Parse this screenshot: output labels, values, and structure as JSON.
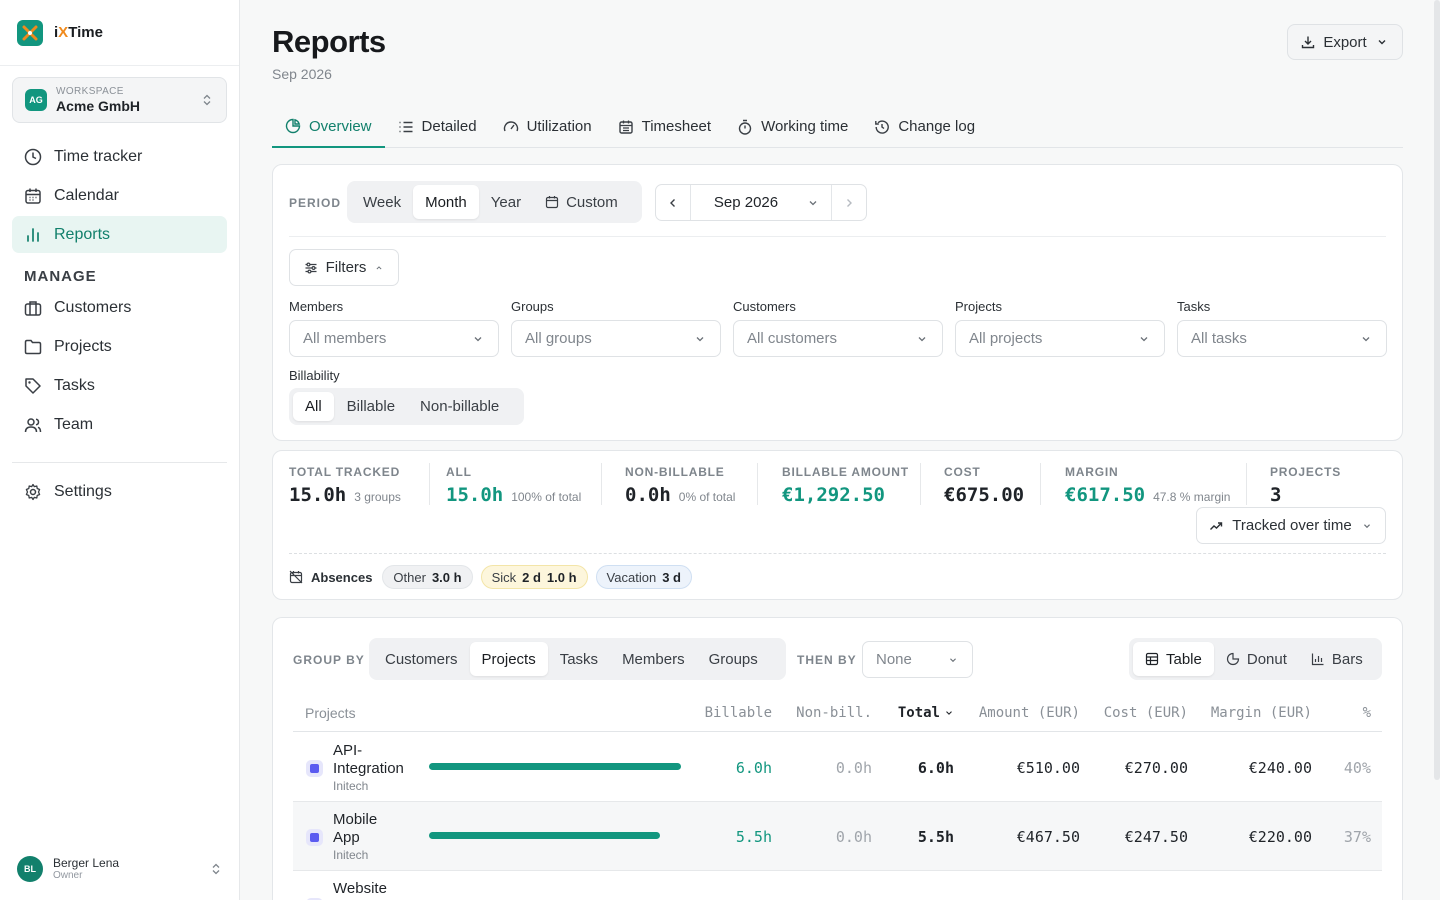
{
  "app": {
    "name_prefix": "i",
    "name_x": "X",
    "name_suffix": "Time"
  },
  "workspace": {
    "badge": "AG",
    "caption": "WORKSPACE",
    "name": "Acme GmbH"
  },
  "sidebar": {
    "items": [
      {
        "label": "Time tracker",
        "icon": "clock-icon"
      },
      {
        "label": "Calendar",
        "icon": "calendar-icon"
      },
      {
        "label": "Reports",
        "icon": "bar-chart-icon",
        "active": true
      }
    ],
    "manage_heading": "MANAGE",
    "manage_items": [
      {
        "label": "Customers",
        "icon": "briefcase-icon"
      },
      {
        "label": "Projects",
        "icon": "folder-icon"
      },
      {
        "label": "Tasks",
        "icon": "tag-icon"
      },
      {
        "label": "Team",
        "icon": "users-icon"
      }
    ],
    "settings": {
      "label": "Settings",
      "icon": "gear-icon"
    }
  },
  "user": {
    "initials": "BL",
    "name": "Berger Lena",
    "role": "Owner"
  },
  "header": {
    "title": "Reports",
    "subtitle": "Sep 2026",
    "export_label": "Export"
  },
  "tabs": [
    {
      "label": "Overview",
      "active": true
    },
    {
      "label": "Detailed"
    },
    {
      "label": "Utilization"
    },
    {
      "label": "Timesheet"
    },
    {
      "label": "Working time"
    },
    {
      "label": "Change log"
    }
  ],
  "period": {
    "label": "PERIOD",
    "options": [
      "Week",
      "Month",
      "Year",
      "Custom"
    ],
    "selected": "Month",
    "current": "Sep 2026"
  },
  "filters": {
    "toggle_label": "Filters",
    "fields": [
      {
        "label": "Members",
        "placeholder": "All members"
      },
      {
        "label": "Groups",
        "placeholder": "All groups"
      },
      {
        "label": "Customers",
        "placeholder": "All customers"
      },
      {
        "label": "Projects",
        "placeholder": "All projects"
      },
      {
        "label": "Tasks",
        "placeholder": "All tasks"
      }
    ],
    "billability": {
      "label": "Billability",
      "options": [
        "All",
        "Billable",
        "Non-billable"
      ],
      "selected": "All"
    }
  },
  "stats": {
    "total_tracked": {
      "label": "TOTAL TRACKED",
      "value": "15.0h",
      "sub": "3 groups"
    },
    "all": {
      "label": "ALL",
      "value": "15.0h",
      "sub": "100% of total"
    },
    "non_billable": {
      "label": "NON-BILLABLE",
      "value": "0.0h",
      "sub": "0% of total"
    },
    "billable_amount": {
      "label": "BILLABLE AMOUNT",
      "value": "€1,292.50"
    },
    "cost": {
      "label": "COST",
      "value": "€675.00"
    },
    "margin": {
      "label": "MARGIN",
      "value": "€617.50",
      "sub": "47.8 % margin"
    },
    "projects": {
      "label": "PROJECTS",
      "value": "3"
    },
    "chart_toggle_label": "Tracked over time"
  },
  "absences": {
    "label": "Absences",
    "chips": [
      {
        "name": "Other",
        "value": "3.0 h"
      },
      {
        "name": "Sick",
        "value": "2 d",
        "extra": "1.0 h"
      },
      {
        "name": "Vacation",
        "value": "3 d"
      }
    ]
  },
  "grouping": {
    "group_by_label": "GROUP BY",
    "options": [
      "Customers",
      "Projects",
      "Tasks",
      "Members",
      "Groups"
    ],
    "selected": "Projects",
    "then_by_label": "THEN BY",
    "then_by_value": "None",
    "views": [
      "Table",
      "Donut",
      "Bars"
    ],
    "selected_view": "Table"
  },
  "table": {
    "columns": [
      "Projects",
      "Billable",
      "Non-bill.",
      "Total",
      "Amount (EUR)",
      "Cost (EUR)",
      "Margin (EUR)",
      "%"
    ],
    "rows": [
      {
        "name_1": "API-",
        "name_2": "Integration",
        "customer": "Initech",
        "billable": "6.0h",
        "non_billable": "0.0h",
        "total": "6.0h",
        "amount": "€510.00",
        "cost": "€270.00",
        "margin": "€240.00",
        "percent": "40%",
        "share": 1.0
      },
      {
        "name_1": "Mobile",
        "name_2": "App",
        "customer": "Initech",
        "billable": "5.5h",
        "non_billable": "0.0h",
        "total": "5.5h",
        "amount": "€467.50",
        "cost": "€247.50",
        "margin": "€220.00",
        "percent": "37%",
        "share": 0.917
      },
      {
        "name_1": "Website",
        "name_2": "",
        "customer": "",
        "billable": "",
        "non_billable": "",
        "total": "",
        "amount": "",
        "cost": "",
        "margin": "",
        "percent": "",
        "share": 0.583
      }
    ]
  },
  "colors": {
    "accent": "#12967f",
    "project_marker": "#5b5bf0",
    "logo_x": "#f08a1c"
  }
}
